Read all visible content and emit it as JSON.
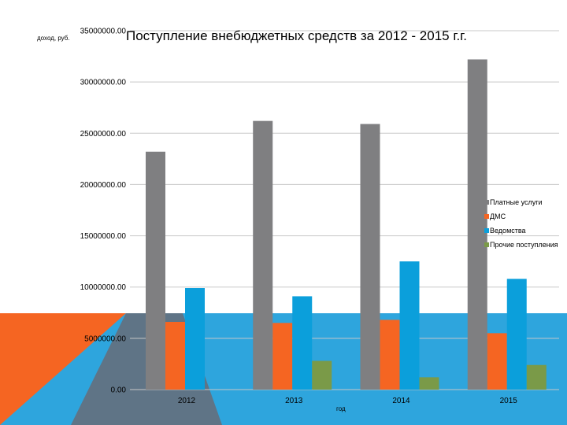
{
  "chart_data": {
    "type": "bar",
    "title": "Поступление внебюджетных средств за 2012 - 2015 г.г.",
    "xlabel": "год",
    "ylabel": "доход, руб.",
    "categories": [
      "2012",
      "2013",
      "2014",
      "2015"
    ],
    "yticks": [
      "0.00",
      "5000000.00",
      "10000000.00",
      "15000000.00",
      "20000000.00",
      "25000000.00",
      "30000000.00",
      "35000000.00"
    ],
    "ylim": [
      0,
      35000000
    ],
    "series": [
      {
        "name": "Платные услуги",
        "color": "#7f7f81",
        "values": [
          23200000,
          26200000,
          25900000,
          32200000
        ]
      },
      {
        "name": "ДМС",
        "color": "#f56522",
        "values": [
          6600000,
          6500000,
          6800000,
          5500000
        ]
      },
      {
        "name": "Ведомства",
        "color": "#0b9fdb",
        "values": [
          9900000,
          9100000,
          12500000,
          10800000
        ]
      },
      {
        "name": "Прочие поступления",
        "color": "#7a9a48",
        "values": [
          0,
          2800000,
          1200000,
          2400000
        ]
      }
    ],
    "legend": "right",
    "grid": true
  },
  "background": {
    "band_color": "#2ea5dd",
    "orange_color": "#f56522",
    "slate_color": "#5f7486"
  }
}
